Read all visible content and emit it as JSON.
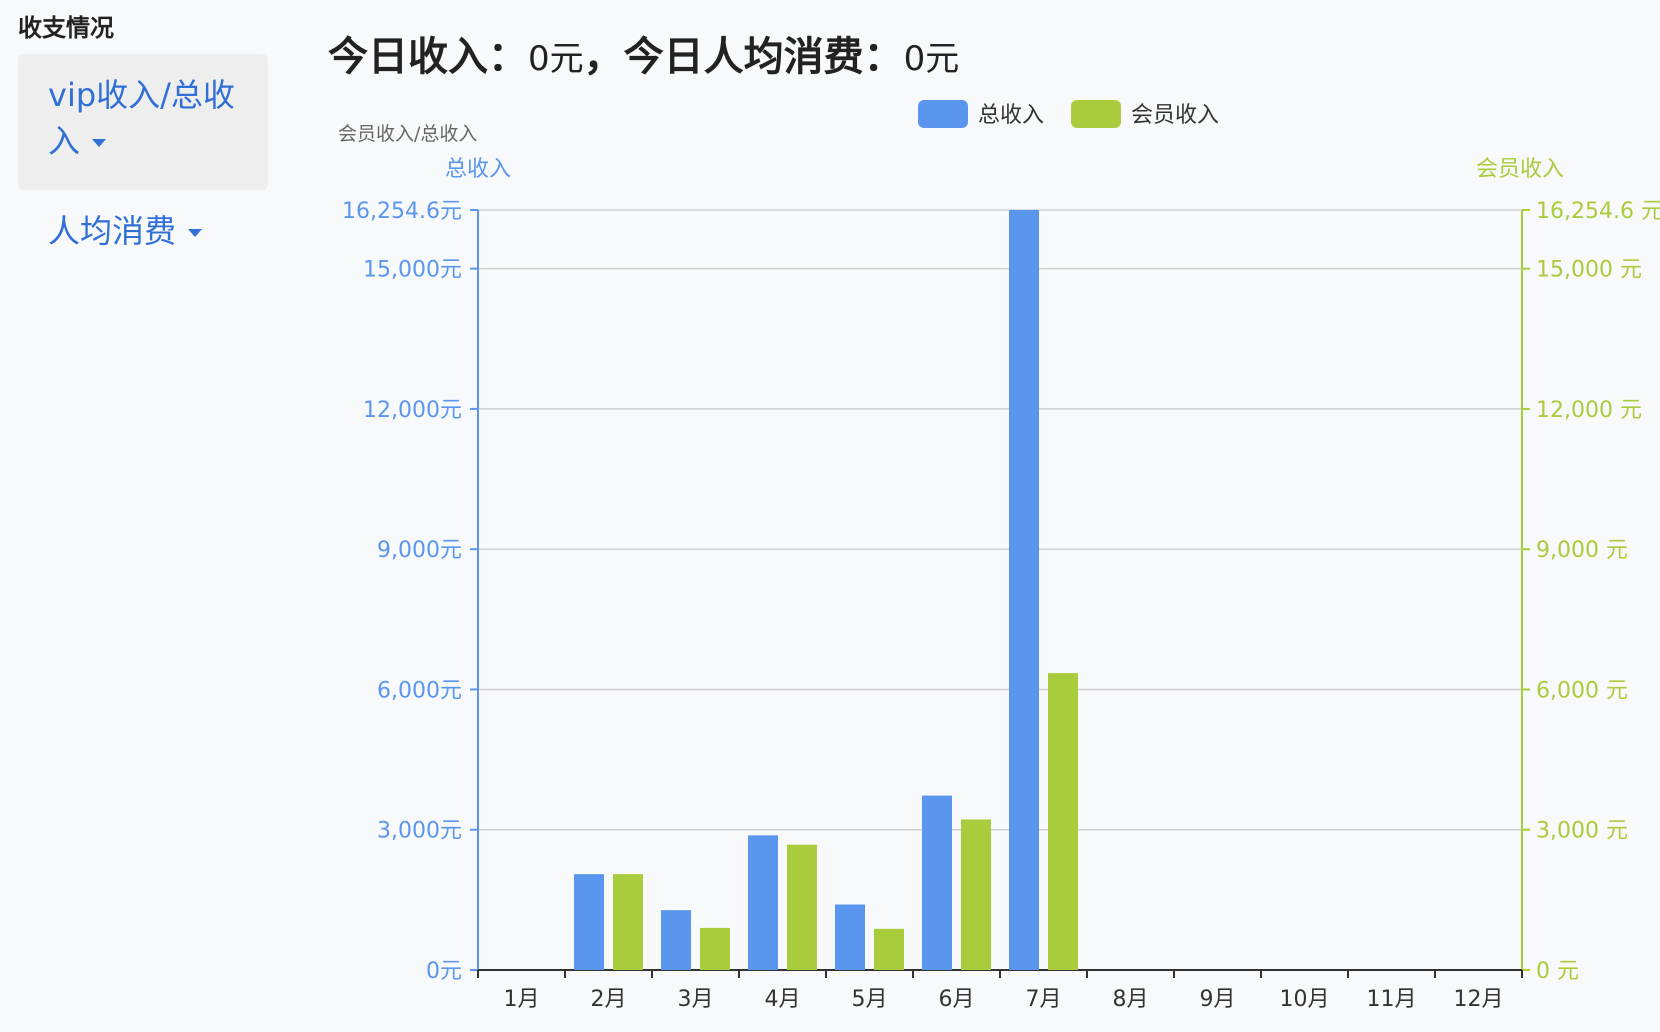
{
  "section": {
    "title": "收支情况"
  },
  "menu": {
    "items": [
      {
        "label": "vip收入/总收入"
      },
      {
        "label": "人均消费"
      }
    ]
  },
  "headline": {
    "income_label": "今日收入：",
    "income_value": "0元",
    "separator": "，",
    "avg_label": "今日人均消费：",
    "avg_value": "0元"
  },
  "colors": {
    "total": "#5b96ee",
    "member": "#a9cc3c",
    "grid": "#cfcfcf",
    "axis_text": "#333333",
    "sub_text": "#666666"
  },
  "chart_data": {
    "type": "bar",
    "subtitle": "会员收入/总收入",
    "categories": [
      "1月",
      "2月",
      "3月",
      "4月",
      "5月",
      "6月",
      "7月",
      "8月",
      "9月",
      "10月",
      "11月",
      "12月"
    ],
    "series": [
      {
        "name": "总收入",
        "axis": "left",
        "values": [
          0,
          2050,
          1280,
          2880,
          1400,
          3730,
          16254.6,
          0,
          0,
          0,
          0,
          0
        ]
      },
      {
        "name": "会员收入",
        "axis": "right",
        "values": [
          0,
          2050,
          900,
          2680,
          880,
          3220,
          6350,
          0,
          0,
          0,
          0,
          0
        ]
      }
    ],
    "ylabel_left": "总收入",
    "ylabel_right": "会员收入",
    "ylim": [
      0,
      16254.6
    ],
    "yticks_left": [
      "0元",
      "3,000元",
      "6,000元",
      "9,000元",
      "12,000元",
      "15,000元",
      "16,254.6元"
    ],
    "yticks_right": [
      "0 元",
      "3,000 元",
      "6,000 元",
      "9,000 元",
      "12,000 元",
      "15,000 元",
      "16,254.6 元"
    ],
    "ytick_values": [
      0,
      3000,
      6000,
      9000,
      12000,
      15000,
      16254.6
    ],
    "legend": [
      "总收入",
      "会员收入"
    ],
    "legend_position": "top-center",
    "grid": true
  }
}
